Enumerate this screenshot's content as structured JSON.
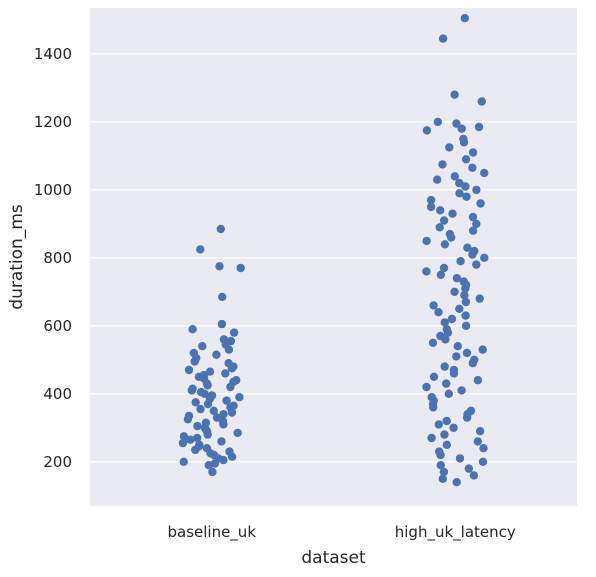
{
  "chart_data": {
    "type": "scatter",
    "style": "strip plot with horizontal jitter",
    "xlabel": "dataset",
    "ylabel": "duration_ms",
    "categories": [
      "baseline_uk",
      "high_uk_latency"
    ],
    "ylim": [
      70,
      1535
    ],
    "yticks": [
      200,
      400,
      600,
      800,
      1000,
      1200,
      1400
    ],
    "grid": true,
    "colors": {
      "background": "#eaeaf2",
      "grid": "#ffffff",
      "point": "#4c72b0"
    },
    "series": [
      {
        "category": "baseline_uk",
        "values": [
          885,
          825,
          775,
          770,
          685,
          605,
          590,
          580,
          560,
          555,
          545,
          540,
          530,
          520,
          515,
          505,
          495,
          490,
          480,
          475,
          470,
          465,
          460,
          455,
          450,
          445,
          440,
          435,
          430,
          425,
          420,
          415,
          410,
          405,
          400,
          395,
          390,
          385,
          380,
          375,
          370,
          365,
          360,
          355,
          350,
          345,
          340,
          335,
          330,
          325,
          320,
          315,
          310,
          305,
          300,
          295,
          290,
          285,
          280,
          275,
          270,
          265,
          260,
          255,
          250,
          245,
          240,
          235,
          230,
          225,
          220,
          215,
          210,
          205,
          200,
          195,
          190,
          170
        ]
      },
      {
        "category": "high_uk_latency",
        "values": [
          1505,
          1445,
          1280,
          1260,
          1200,
          1195,
          1185,
          1180,
          1175,
          1150,
          1140,
          1125,
          1110,
          1090,
          1075,
          1065,
          1050,
          1040,
          1030,
          1020,
          1010,
          1000,
          990,
          980,
          970,
          960,
          950,
          940,
          930,
          920,
          910,
          900,
          890,
          880,
          870,
          860,
          850,
          840,
          830,
          820,
          810,
          800,
          790,
          780,
          770,
          760,
          750,
          740,
          730,
          720,
          710,
          700,
          690,
          680,
          670,
          660,
          650,
          640,
          630,
          620,
          610,
          600,
          590,
          580,
          570,
          560,
          550,
          540,
          530,
          520,
          510,
          500,
          490,
          480,
          470,
          460,
          450,
          440,
          430,
          420,
          410,
          400,
          390,
          380,
          370,
          360,
          350,
          340,
          330,
          320,
          310,
          300,
          290,
          280,
          270,
          260,
          250,
          240,
          230,
          220,
          210,
          200,
          190,
          180,
          170,
          160,
          150,
          140
        ]
      }
    ]
  }
}
